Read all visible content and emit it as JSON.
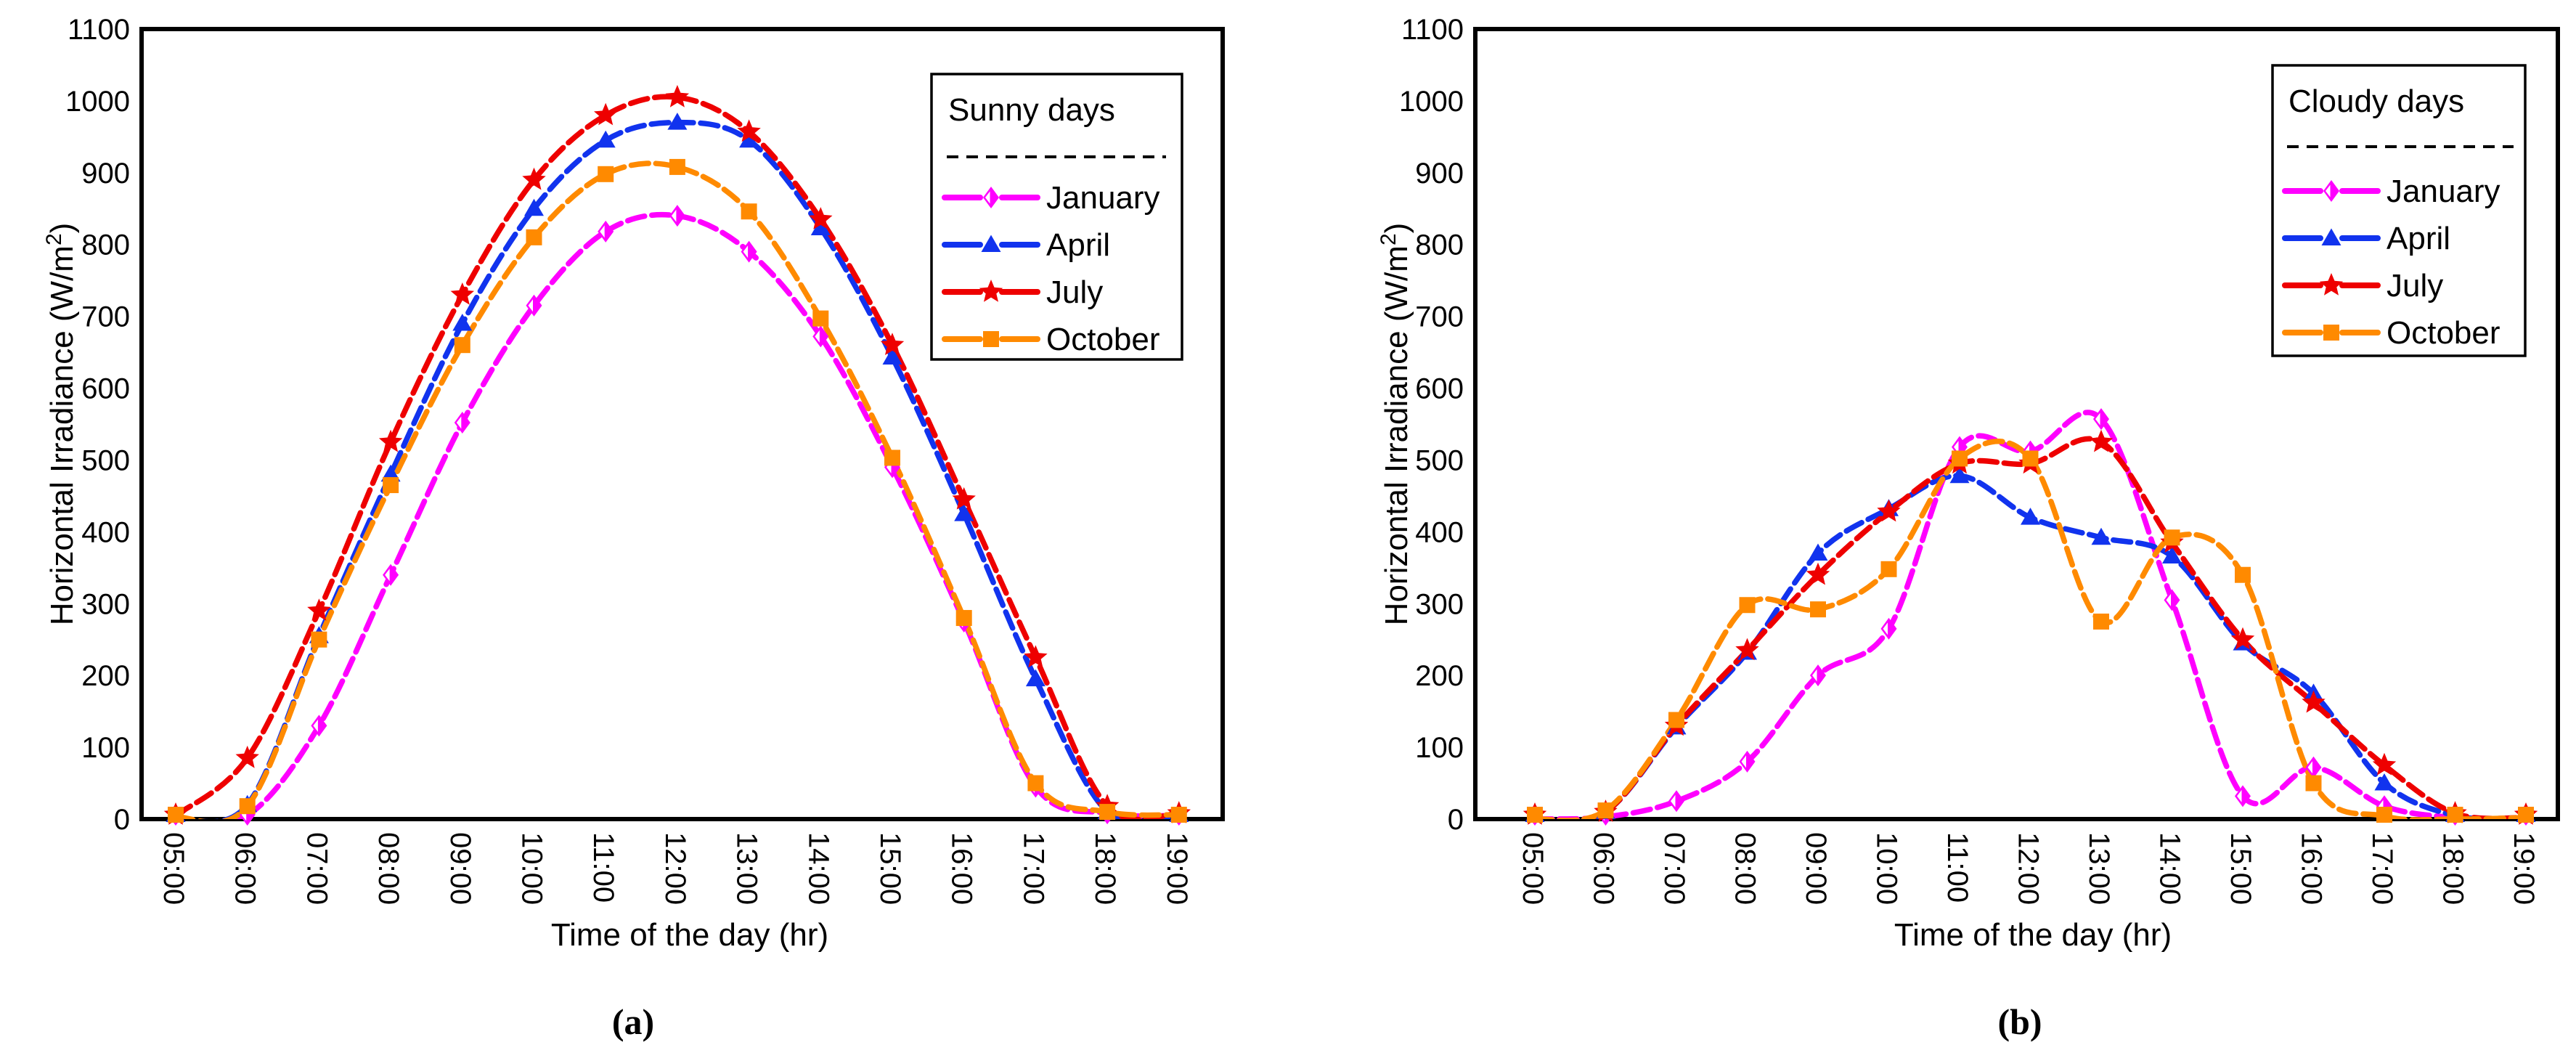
{
  "figure": {
    "background": "#FFFFFF",
    "x_axis_label": "Time of the day (hr)",
    "y_axis_label_main": "Horizontal Irradiance (W/m",
    "y_axis_label_sup": "2",
    "y_axis_label_close": ")",
    "captions": {
      "a": "(a)",
      "b": "(b)"
    },
    "frame_color": "#000000",
    "legend_separator": "dashed-line"
  },
  "chart_data": [
    {
      "type": "line",
      "panel": "a",
      "legend_title": "Sunny days",
      "legend_position": "top-right",
      "xlabel": "Time of the day (hr)",
      "ylabel": "Horizontal Irradiance (W/m2)",
      "ylim": [
        0,
        1100
      ],
      "ytick_step": 100,
      "grid": false,
      "line_style": "dashed",
      "x": [
        "05:00",
        "06:00",
        "07:00",
        "08:00",
        "09:00",
        "10:00",
        "11:00",
        "12:00",
        "13:00",
        "14:00",
        "15:00",
        "16:00",
        "17:00",
        "18:00",
        "19:00"
      ],
      "series": [
        {
          "name": "January",
          "color": "#FF00FF",
          "marker": "diamond-half",
          "values": [
            0,
            5,
            130,
            340,
            552,
            715,
            818,
            840,
            790,
            672,
            490,
            275,
            45,
            8,
            5
          ]
        },
        {
          "name": "April",
          "color": "#1133EE",
          "marker": "triangle",
          "values": [
            2,
            20,
            255,
            480,
            690,
            850,
            945,
            970,
            945,
            823,
            643,
            425,
            195,
            10,
            3
          ]
        },
        {
          "name": "July",
          "color": "#EE0000",
          "marker": "star",
          "values": [
            5,
            85,
            290,
            525,
            730,
            890,
            980,
            1005,
            957,
            835,
            660,
            445,
            225,
            18,
            8
          ]
        },
        {
          "name": "October",
          "color": "#FF8A00",
          "marker": "square",
          "values": [
            3,
            18,
            250,
            465,
            660,
            810,
            898,
            908,
            846,
            697,
            503,
            280,
            50,
            10,
            6
          ]
        }
      ]
    },
    {
      "type": "line",
      "panel": "b",
      "legend_title": "Cloudy days",
      "legend_position": "top-right",
      "xlabel": "Time of the day (hr)",
      "ylabel": "Horizontal Irradiance (W/m2)",
      "ylim": [
        0,
        1100
      ],
      "ytick_step": 100,
      "grid": false,
      "line_style": "dashed",
      "x": [
        "05:00",
        "06:00",
        "07:00",
        "08:00",
        "09:00",
        "10:00",
        "11:00",
        "12:00",
        "13:00",
        "14:00",
        "15:00",
        "16:00",
        "17:00",
        "18:00",
        "19:00"
      ],
      "series": [
        {
          "name": "January",
          "color": "#FF00FF",
          "marker": "diamond-half",
          "values": [
            0,
            3,
            25,
            80,
            200,
            265,
            518,
            512,
            557,
            305,
            32,
            72,
            18,
            2,
            0
          ]
        },
        {
          "name": "April",
          "color": "#1133EE",
          "marker": "triangle",
          "values": [
            0,
            10,
            128,
            232,
            370,
            432,
            478,
            420,
            392,
            366,
            245,
            175,
            50,
            5,
            0
          ]
        },
        {
          "name": "July",
          "color": "#EE0000",
          "marker": "star",
          "values": [
            0,
            10,
            130,
            235,
            340,
            428,
            495,
            495,
            525,
            385,
            250,
            162,
            75,
            8,
            2
          ]
        },
        {
          "name": "October",
          "color": "#FF8A00",
          "marker": "square",
          "values": [
            0,
            12,
            138,
            298,
            292,
            348,
            502,
            502,
            275,
            392,
            340,
            50,
            4,
            0,
            2
          ]
        }
      ]
    }
  ]
}
